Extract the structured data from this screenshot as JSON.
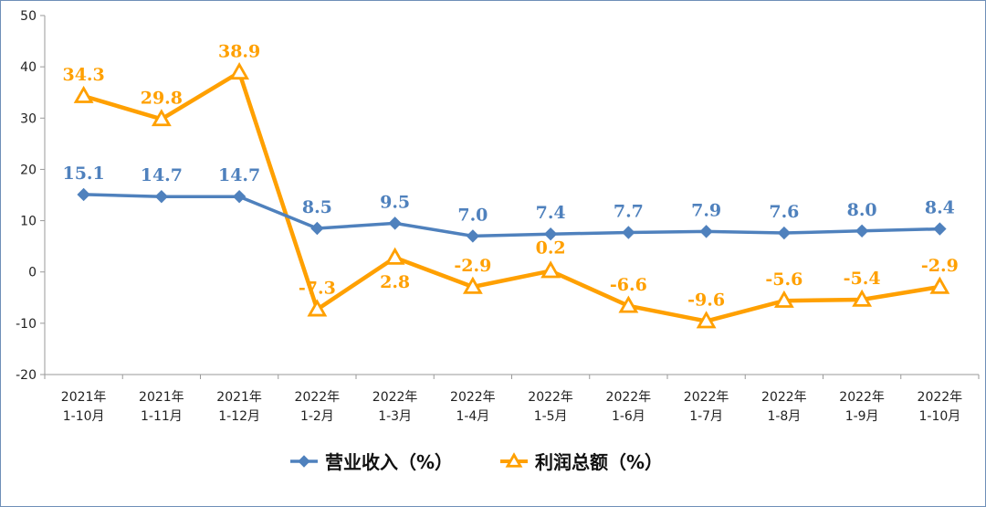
{
  "chart_data": {
    "type": "line",
    "categories": [
      [
        "2021年",
        "1-10月"
      ],
      [
        "2021年",
        "1-11月"
      ],
      [
        "2021年",
        "1-12月"
      ],
      [
        "2022年",
        "1-2月"
      ],
      [
        "2022年",
        "1-3月"
      ],
      [
        "2022年",
        "1-4月"
      ],
      [
        "2022年",
        "1-5月"
      ],
      [
        "2022年",
        "1-6月"
      ],
      [
        "2022年",
        "1-7月"
      ],
      [
        "2022年",
        "1-8月"
      ],
      [
        "2022年",
        "1-9月"
      ],
      [
        "2022年",
        "1-10月"
      ]
    ],
    "series": [
      {
        "name": "营业收入（%）",
        "color": "#4f81bd",
        "marker": "diamond",
        "values": [
          15.1,
          14.7,
          14.7,
          8.5,
          9.5,
          7.0,
          7.4,
          7.7,
          7.9,
          7.6,
          8.0,
          8.4
        ],
        "labels": [
          "15.1",
          "14.7",
          "14.7",
          "8.5",
          "9.5",
          "7.0",
          "7.4",
          "7.7",
          "7.9",
          "7.6",
          "8.0",
          "8.4"
        ]
      },
      {
        "name": "利润总额（%）",
        "color": "#ffa000",
        "marker": "triangle",
        "values": [
          34.3,
          29.8,
          38.9,
          -7.3,
          2.8,
          -2.9,
          0.2,
          -6.6,
          -9.6,
          -5.6,
          -5.4,
          -2.9
        ],
        "labels": [
          "34.3",
          "29.8",
          "38.9",
          "-7.3",
          "2.8",
          "-2.9",
          "0.2",
          "-6.6",
          "-9.6",
          "-5.6",
          "-5.4",
          "-2.9"
        ]
      }
    ],
    "yticks": [
      50,
      40,
      30,
      20,
      10,
      0,
      -10,
      -20
    ],
    "ytick_labels": [
      "50",
      "40",
      "30",
      "20",
      "10",
      "0",
      "-10",
      "-20"
    ],
    "ylim": [
      -20,
      50
    ],
    "grid": false,
    "legend_position": "bottom-center"
  }
}
